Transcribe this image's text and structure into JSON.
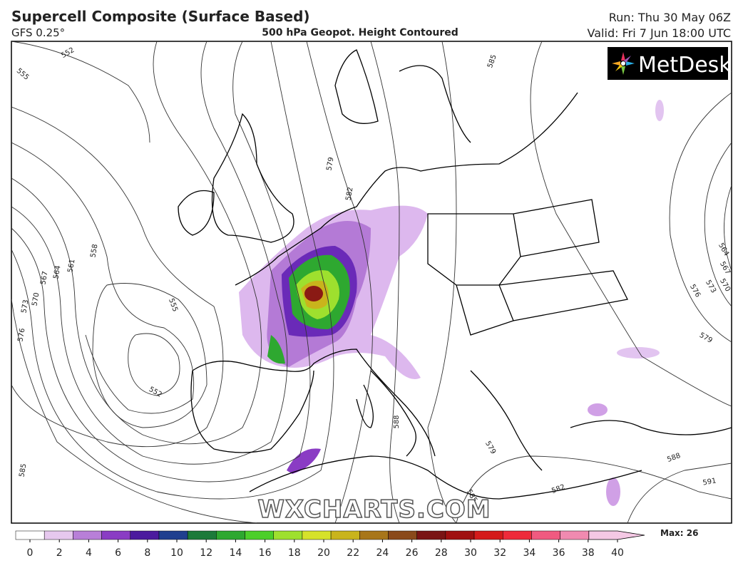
{
  "header": {
    "title": "Supercell Composite (Surface Based)",
    "model": "GFS 0.25°",
    "subtitle": "500 hPa Geopot. Height Contoured",
    "run": "Run: Thu 30 May 06Z",
    "valid": "Valid: Fri 7 Jun 18:00 UTC"
  },
  "logo": "MetDesk",
  "watermark": "WXCHARTS.COM",
  "contour_labels": [
    "552",
    "555",
    "555",
    "552",
    "558",
    "561",
    "564",
    "567",
    "570",
    "573",
    "576",
    "585",
    "579",
    "582",
    "585",
    "588",
    "579",
    "582",
    "585",
    "588",
    "591",
    "576",
    "573",
    "570",
    "567",
    "564",
    "579"
  ],
  "colorbar": {
    "ticks": [
      0,
      2,
      4,
      6,
      8,
      10,
      12,
      14,
      16,
      18,
      20,
      22,
      24,
      26,
      28,
      30,
      32,
      34,
      36,
      38,
      40
    ],
    "colors": [
      "#ffffff",
      "#e6c8ee",
      "#b87fd8",
      "#8a3cc4",
      "#4b1a9e",
      "#1f3f8f",
      "#1c7a3a",
      "#2ea830",
      "#4ccf2a",
      "#9ee02e",
      "#d6e22a",
      "#c9b41c",
      "#a8761a",
      "#8a4a1a",
      "#7a1414",
      "#a01010",
      "#d41a1a",
      "#ee2a3a",
      "#f05a80",
      "#f08ab0",
      "#f4c8e4"
    ],
    "max_label": "Max: 26"
  }
}
